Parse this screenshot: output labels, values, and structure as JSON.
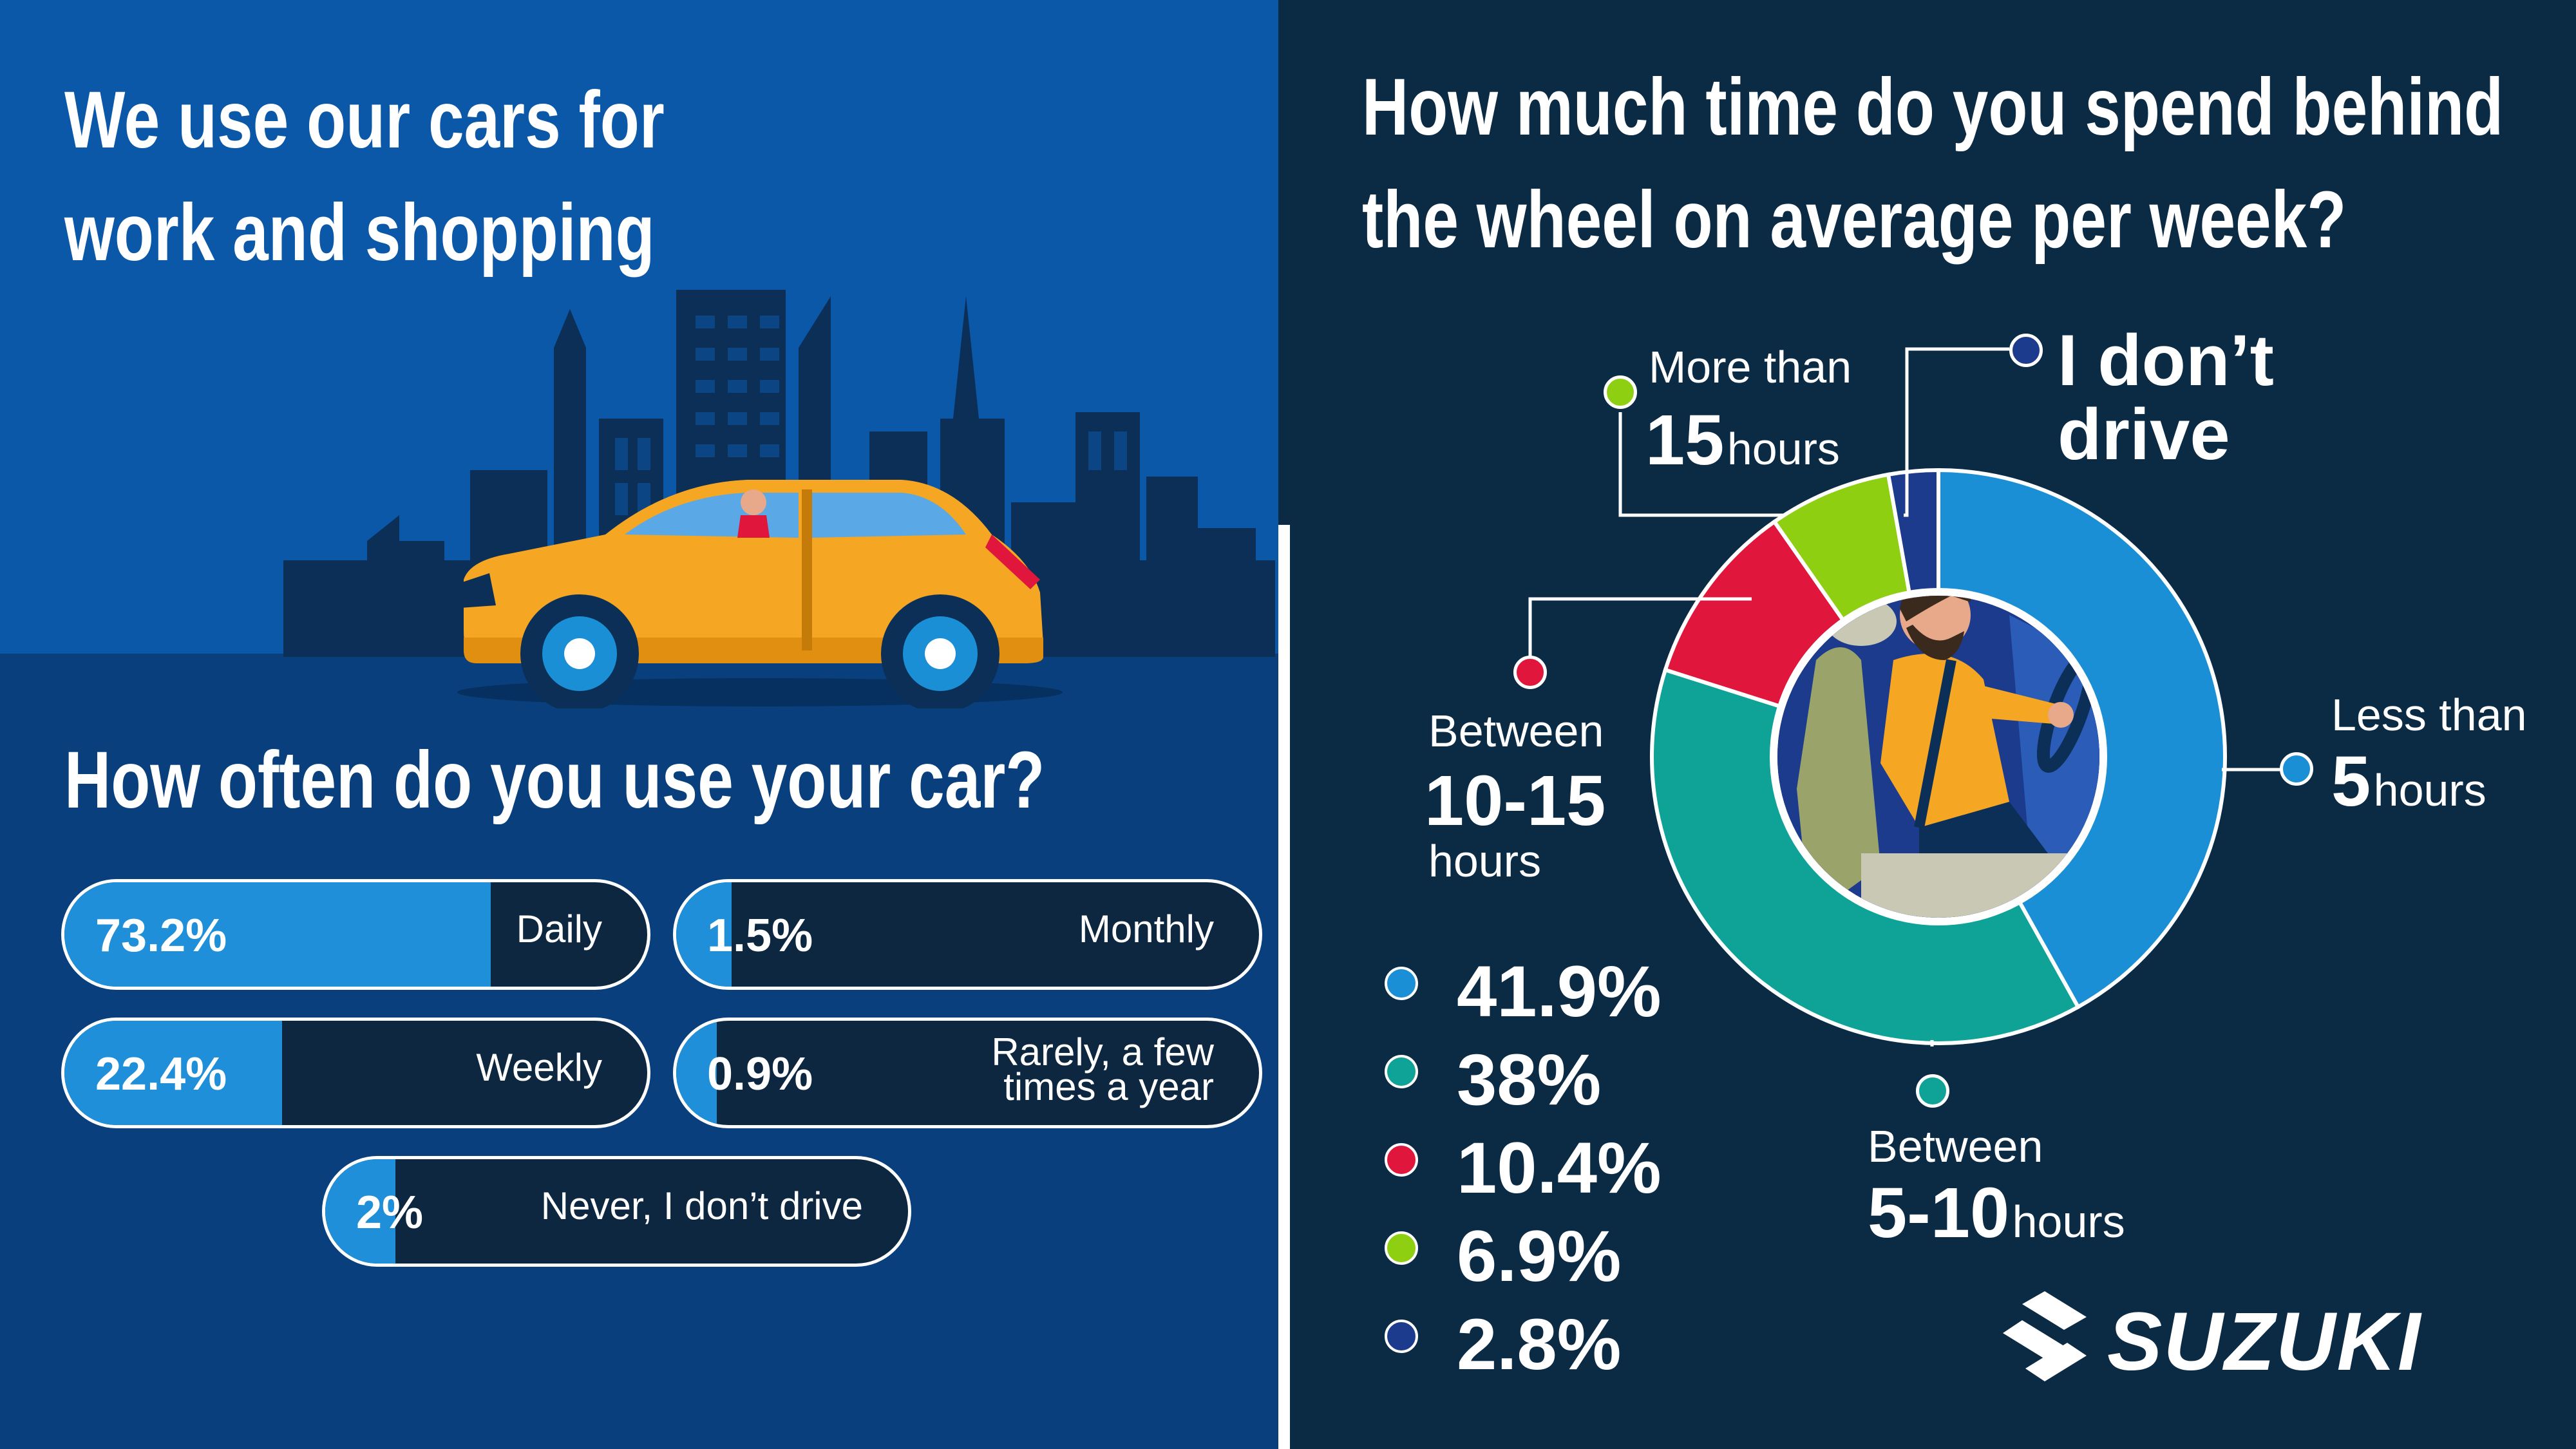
{
  "left": {
    "title_line1": "We use our cars for",
    "title_line2": "work and shopping",
    "subtitle": "How often do you use your car?"
  },
  "right": {
    "title_line1": "How much time do you spend behind",
    "title_line2": "the wheel on average per week?"
  },
  "chart_data": [
    {
      "type": "bar",
      "title": "How often do you use your car?",
      "categories": [
        "Daily",
        "Weekly",
        "Never, I don’t drive",
        "Monthly",
        "Rarely, a few times a year"
      ],
      "values": [
        73.2,
        22.4,
        2,
        1.5,
        0.9
      ],
      "labels": [
        "73.2%",
        "22.4%",
        "2%",
        "1.5%",
        "0.9%"
      ],
      "items": [
        {
          "label": "Daily",
          "pct_text": "73.2%",
          "value": 73.2
        },
        {
          "label": "Weekly",
          "pct_text": "22.4%",
          "value": 22.4
        },
        {
          "label": "Never, I don’t drive",
          "pct_text": "2%",
          "value": 2
        },
        {
          "label": "Monthly",
          "pct_text": "1.5%",
          "value": 1.5
        },
        {
          "label": "Rarely, a few times a year",
          "label_line1": "Rarely, a few",
          "label_line2": "times a year",
          "pct_text": "0.9%",
          "value": 0.9
        }
      ],
      "ylim": [
        0,
        100
      ]
    },
    {
      "type": "pie",
      "title": "How much time do you spend behind the wheel on average per week?",
      "categories": [
        "Less than 5 hours",
        "Between 5-10 hours",
        "Between 10-15 hours",
        "More than 15 hours",
        "I don’t drive"
      ],
      "values": [
        41.9,
        38,
        10.4,
        6.9,
        2.8
      ],
      "labels": [
        "41.9%",
        "38%",
        "10.4%",
        "6.9%",
        "2.8%"
      ],
      "colors": [
        "#1a8fd6",
        "#0ea396",
        "#e0163d",
        "#8fcf12",
        "#1c3b8c"
      ],
      "callouts": {
        "less5": {
          "line1": "Less than",
          "num": "5",
          "unit": "hours"
        },
        "b510": {
          "line1": "Between",
          "num": "5-10",
          "unit": "hours"
        },
        "b1015": {
          "line1": "Between",
          "num": "10-15",
          "unit": "hours"
        },
        "more15": {
          "line1": "More than",
          "num": "15",
          "unit": "hours"
        },
        "nodrive": {
          "line1": "I don’t",
          "line2": "drive"
        }
      }
    }
  ],
  "colors": {
    "left_bg_top": "#0b57a8",
    "left_bg_bottom": "#083f7c",
    "right_bg": "#0b2a44",
    "bar_fill": "#1e8fd8",
    "car": "#f5a623"
  },
  "icons": [
    "city-skyline-illustration",
    "yellow-suv-illustration",
    "driver-illustration",
    "suzuki-logo-icon"
  ],
  "logo": {
    "text": "SUZUKI"
  }
}
